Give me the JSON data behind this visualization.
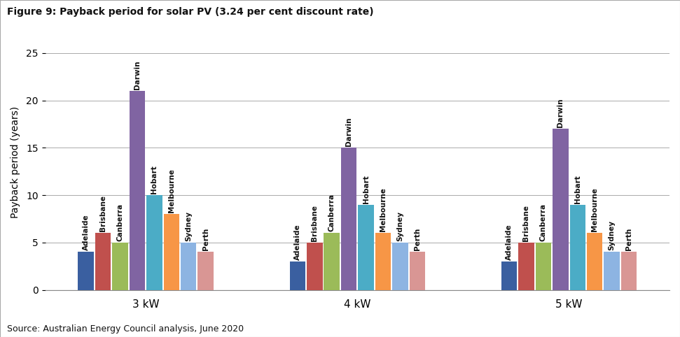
{
  "title": "Figure 9: Payback period for solar PV (3.24 per cent discount rate)",
  "ylabel": "Payback period (years)",
  "source": "Source: Australian Energy Council analysis, June 2020",
  "groups": [
    "3 kW",
    "4 kW",
    "5 kW"
  ],
  "cities": [
    "Adelaide",
    "Brisbane",
    "Canberra",
    "Darwin",
    "Hobart",
    "Melbourne",
    "Sydney",
    "Perth"
  ],
  "values": {
    "3 kW": [
      4.0,
      6.0,
      5.0,
      21.0,
      10.0,
      8.0,
      5.0,
      4.0
    ],
    "4 kW": [
      3.0,
      5.0,
      6.0,
      15.0,
      9.0,
      6.0,
      5.0,
      4.0
    ],
    "5 kW": [
      3.0,
      5.0,
      5.0,
      17.0,
      9.0,
      6.0,
      4.0,
      4.0
    ]
  },
  "colors": [
    "#3a5fa0",
    "#c0504d",
    "#9bbb59",
    "#8064a2",
    "#4bacc6",
    "#f79646",
    "#8db4e2",
    "#d99694"
  ],
  "ylim": [
    0,
    27
  ],
  "yticks": [
    0,
    5,
    10,
    15,
    20,
    25
  ],
  "title_fontsize": 10,
  "axis_fontsize": 10,
  "label_fontsize": 7.5,
  "tick_fontsize": 10,
  "source_fontsize": 9,
  "bg_color": "#ffffff",
  "grid_color": "#aaaaaa"
}
